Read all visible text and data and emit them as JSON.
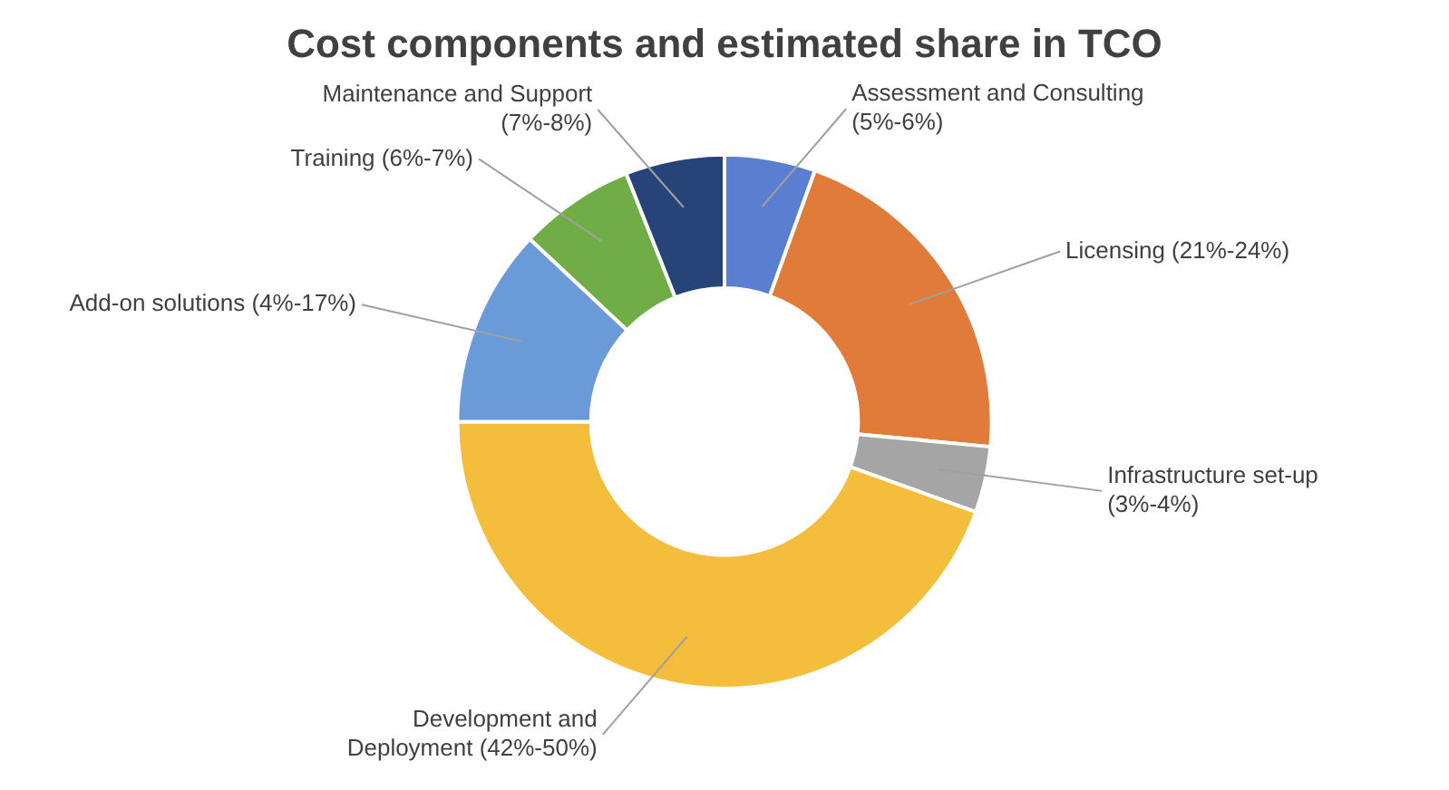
{
  "chart_data": {
    "type": "donut",
    "title": "Cost components and estimated share in TCO",
    "categories": [
      "Assessment and Consulting (5%-6%)",
      "Licensing (21%-24%)",
      "Infrastructure set-up (3%-4%)",
      "Development and Deployment (42%-50%)",
      "Add-on solutions (4%-17%)",
      "Training (6%-7%)",
      "Maintenance and Support (7%-8%)"
    ],
    "values": [
      5.5,
      21,
      4,
      44.5,
      12,
      7,
      6
    ],
    "colors": [
      "#5b7fd0",
      "#e07b39",
      "#a5a5a5",
      "#f5bd3c",
      "#6a9bd8",
      "#70ad47",
      "#264478"
    ],
    "legend": false
  }
}
